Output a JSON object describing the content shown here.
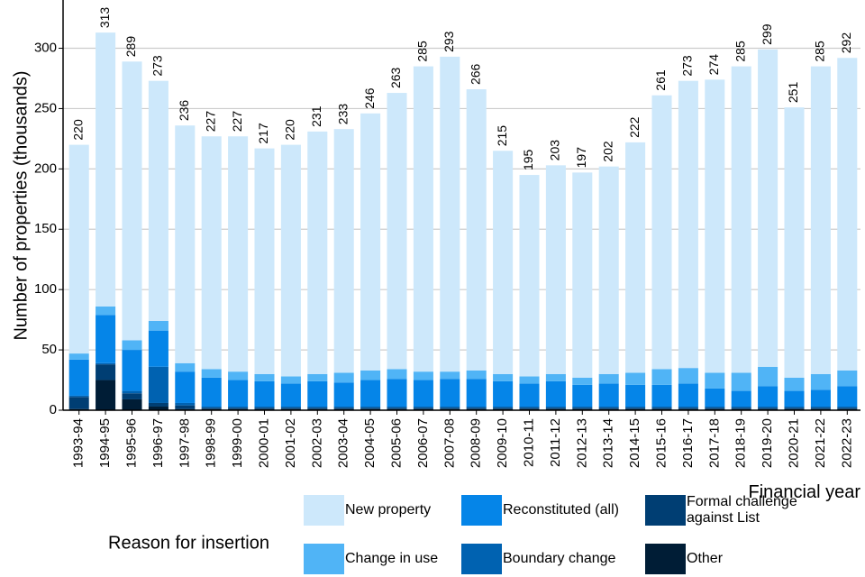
{
  "chart_data": {
    "type": "stacked_bar",
    "x_label": "Financial year",
    "y_label": "Number of properties (thousands)",
    "legend_title": "Reason for insertion",
    "categories": [
      "1993-94",
      "1994-95",
      "1995-96",
      "1996-97",
      "1997-98",
      "1998-99",
      "1999-00",
      "2000-01",
      "2001-02",
      "2002-03",
      "2003-04",
      "2004-05",
      "2005-06",
      "2006-07",
      "2007-08",
      "2008-09",
      "2009-10",
      "2010-11",
      "2011-12",
      "2012-13",
      "2013-14",
      "2014-15",
      "2015-16",
      "2016-17",
      "2017-18",
      "2018-19",
      "2019-20",
      "2020-21",
      "2021-22",
      "2022-23"
    ],
    "totals": [
      220,
      313,
      289,
      273,
      236,
      227,
      227,
      217,
      220,
      231,
      233,
      246,
      263,
      285,
      293,
      266,
      215,
      195,
      203,
      197,
      202,
      222,
      261,
      273,
      274,
      285,
      299,
      251,
      285,
      292
    ],
    "series": [
      {
        "name": "Other",
        "color": "#001d36",
        "values": [
          1,
          25,
          9,
          3,
          1,
          1,
          1,
          1,
          1,
          1,
          1,
          1,
          1,
          1,
          1,
          1,
          1,
          1,
          1,
          1,
          1,
          1,
          1,
          1,
          1,
          1,
          1,
          1,
          1,
          1
        ]
      },
      {
        "name": "Formal challenge against List",
        "color": "#003e73",
        "values": [
          10,
          13,
          5,
          3,
          3,
          1,
          1,
          1,
          1,
          1,
          1,
          1,
          1,
          1,
          1,
          1,
          1,
          1,
          1,
          1,
          1,
          1,
          1,
          1,
          1,
          1,
          1,
          1,
          1,
          1
        ]
      },
      {
        "name": "Boundary change",
        "color": "#0062b1",
        "values": [
          1,
          1,
          2,
          30,
          2,
          1,
          1,
          1,
          1,
          1,
          1,
          1,
          1,
          1,
          1,
          1,
          1,
          1,
          1,
          1,
          1,
          1,
          1,
          1,
          1,
          1,
          1,
          1,
          1,
          1
        ]
      },
      {
        "name": "Reconstituted (all)",
        "color": "#0585e8",
        "values": [
          30,
          40,
          34,
          30,
          26,
          24,
          22,
          21,
          19,
          21,
          20,
          22,
          23,
          22,
          23,
          23,
          21,
          19,
          21,
          18,
          19,
          18,
          18,
          19,
          15,
          13,
          17,
          13,
          14,
          17
        ]
      },
      {
        "name": "Change in use",
        "color": "#50b4f6",
        "values": [
          5,
          7,
          8,
          8,
          7,
          7,
          7,
          6,
          6,
          6,
          8,
          8,
          8,
          7,
          6,
          7,
          6,
          6,
          6,
          6,
          8,
          10,
          13,
          13,
          13,
          15,
          16,
          11,
          13,
          13
        ]
      },
      {
        "name": "New property",
        "color": "#cde8fb",
        "values": [
          173,
          227,
          231,
          199,
          197,
          193,
          195,
          187,
          192,
          201,
          202,
          213,
          229,
          253,
          261,
          233,
          185,
          167,
          173,
          170,
          172,
          191,
          227,
          238,
          243,
          254,
          263,
          224,
          255,
          259
        ]
      }
    ],
    "ylim": [
      0,
      340
    ],
    "yticks": [
      0,
      50,
      100,
      150,
      200,
      250,
      300
    ],
    "grid": true
  }
}
